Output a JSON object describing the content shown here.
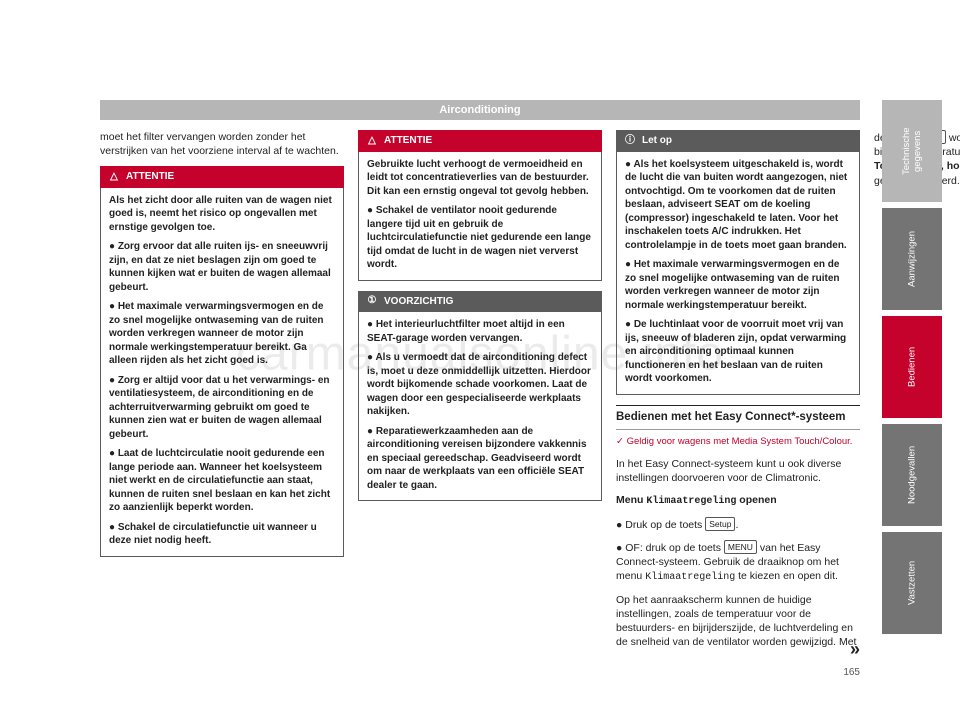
{
  "watermark": "carmanualsonline.info",
  "title_bar": "Airconditioning",
  "page_number": "165",
  "continuation_marker": "»",
  "intro": "moet het filter vervangen worden zonder het verstrijken van het voorziene interval af te wachten.",
  "boxes": {
    "att1": {
      "header": "ATTENTIE",
      "icon": "△",
      "color": "red",
      "paras": [
        "Als het zicht door alle ruiten van de wagen niet goed is, neemt het risico op ongevallen met ernstige gevolgen toe.",
        "● Zorg ervoor dat alle ruiten ijs- en sneeuwvrij zijn, en dat ze niet beslagen zijn om goed te kunnen kijken wat er buiten de wagen allemaal gebeurt.",
        "● Het maximale verwarmingsvermogen en de zo snel mogelijke ontwaseming van de ruiten worden verkregen wanneer de motor zijn normale werkingstemperatuur bereikt. Ga alleen rijden als het zicht goed is.",
        "● Zorg er altijd voor dat u het verwarmings- en ventilatiesysteem, de airconditioning en de achterruitverwarming gebruikt om goed te kunnen zien wat er buiten de wagen allemaal gebeurt.",
        "● Laat de luchtcirculatie nooit gedurende een lange periode aan. Wanneer het koelsysteem niet werkt en de circulatiefunctie aan staat, kunnen de ruiten snel beslaan en kan het zicht zo aanzienlijk beperkt worden.",
        "● Schakel de circulatiefunctie uit wanneer u deze niet nodig heeft."
      ]
    },
    "att2": {
      "header": "ATTENTIE",
      "icon": "△",
      "color": "red",
      "paras": [
        "Gebruikte lucht verhoogt de vermoeidheid en leidt tot concentratieverlies van de bestuur­der. Dit kan een ernstig ongeval tot gevolg hebben.",
        "● Schakel de ventilator nooit gedurende langere tijd uit en gebruik de luchtcirculatiefunctie niet gedurende een lange tijd omdat de lucht in de wagen niet ververst wordt."
      ]
    },
    "voorz": {
      "header": "VOORZICHTIG",
      "icon": "①",
      "color": "grey",
      "paras": [
        "● Het interieurluchtfilter moet altijd in een SEAT-garage worden vervangen.",
        "● Als u vermoedt dat de airconditioning defect is, moet u deze onmiddellijk uitzetten. Hierdoor wordt bijkomende schade voorkomen. Laat de wagen door een gespecialiseerde werkplaats nakijken.",
        "● Reparatiewerkzaamheden aan de airconditioning vereisen bijzondere vakkennis en speciaal gereedschap. Geadviseerd wordt om naar de werkplaats van een officiële SEAT dealer te gaan."
      ]
    },
    "letop": {
      "header": "Let op",
      "icon": "ⓘ",
      "color": "grey",
      "paras": [
        "● Als het koelsysteem uitgeschakeld is, wordt de lucht die van buiten wordt aangezogen, niet ontvochtigd. Om te voorkomen dat de ruiten beslaan, adviseert SEAT om de koeling (compressor) ingeschakeld te laten. Voor het inschakelen toets A/C indrukken. Het controlelampje in de toets moet gaan branden.",
        "● Het maximale verwarmingsvermogen en de zo snel mogelijke ontwaseming van de ruiten worden verkregen wanneer de motor zijn normale werkingstemperatuur bereikt.",
        "● De luchtinlaat voor de voorruit moet vrij van ijs, sneeuw of bladeren zijn, opdat verwarming en airconditioning optimaal kunnen functioneren en het beslaan van de ruiten wordt voorkomen."
      ]
    }
  },
  "section": {
    "heading": "Bedienen met het Easy Connect*-systeem",
    "validity": "✓ Geldig voor wagens met Media System Touch/Colour.",
    "p1": "In het Easy Connect-systeem kunt u ook diverse instellingen doorvoeren voor de Climatronic.",
    "menu_label": "Klimaatregeling",
    "menu_line_prefix": "Menu ",
    "menu_line_suffix": " openen",
    "b1_prefix": "● Druk op de toets ",
    "b1_key": "Setup",
    "b1_suffix": ".",
    "b2_p1": "● OF: druk op de toets ",
    "b2_key": "MENU",
    "b2_p2": " van het Easy Connect-systeem. Gebruik de draaiknop om het menu ",
    "b2_p3": " te kiezen en open dit.",
    "p3_a": "Op het aanraakscherm kunnen de huidige instellingen, zoals de temperatuur voor de bestuurders- en bijrijderszijde, de luchtverdeling en de snelheid van de ventilator worden gewijzigd. Met de toets ",
    "p3_key": "SYNC",
    "p3_b": " worden de bestuurders- en bijrijderstemperaturen ",
    "p3_bookref": "››› brochure Media System Touch/Colour, hoofdstuk Klimaatregeling",
    "p3_c": " gesynchroniseerd."
  },
  "tabs": [
    {
      "label": "Technische gegevens",
      "shade": "lt"
    },
    {
      "label": "Aanwijzingen",
      "shade": "md"
    },
    {
      "label": "Bedienen",
      "shade": "rd"
    },
    {
      "label": "Noodgevallen",
      "shade": "md"
    },
    {
      "label": "Vastzetten",
      "shade": "md"
    }
  ],
  "colors": {
    "accent_red": "#c4022b",
    "bar_grey": "#b6b6b6",
    "box_grey": "#5b5b5b",
    "tab_mid": "#747474"
  }
}
